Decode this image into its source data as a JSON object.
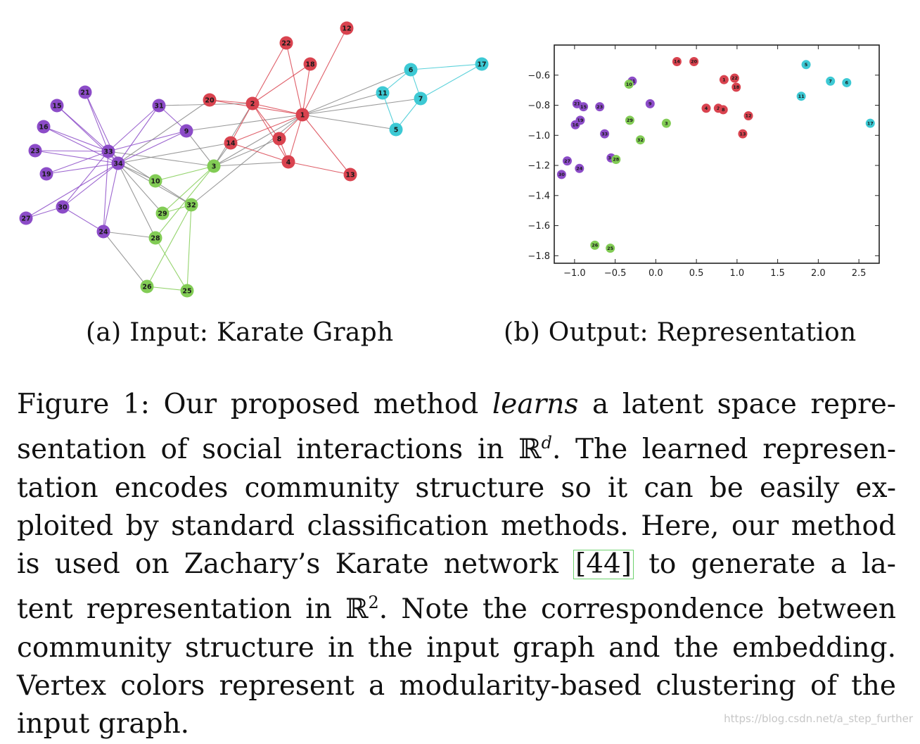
{
  "colors": {
    "purple": "#8c4cc8",
    "red": "#d9434f",
    "cyan": "#3dc9d4",
    "green": "#82cc55",
    "edge_gray": "#8a8a8a"
  },
  "graph": {
    "nodes": [
      {
        "id": "1",
        "group": "red"
      },
      {
        "id": "2",
        "group": "red"
      },
      {
        "id": "3",
        "group": "green"
      },
      {
        "id": "4",
        "group": "red"
      },
      {
        "id": "5",
        "group": "cyan"
      },
      {
        "id": "6",
        "group": "cyan"
      },
      {
        "id": "7",
        "group": "cyan"
      },
      {
        "id": "8",
        "group": "red"
      },
      {
        "id": "9",
        "group": "purple"
      },
      {
        "id": "10",
        "group": "green"
      },
      {
        "id": "11",
        "group": "cyan"
      },
      {
        "id": "12",
        "group": "red"
      },
      {
        "id": "13",
        "group": "red"
      },
      {
        "id": "14",
        "group": "red"
      },
      {
        "id": "15",
        "group": "purple"
      },
      {
        "id": "16",
        "group": "purple"
      },
      {
        "id": "17",
        "group": "cyan"
      },
      {
        "id": "18",
        "group": "red"
      },
      {
        "id": "19",
        "group": "purple"
      },
      {
        "id": "20",
        "group": "red"
      },
      {
        "id": "21",
        "group": "purple"
      },
      {
        "id": "22",
        "group": "red"
      },
      {
        "id": "23",
        "group": "purple"
      },
      {
        "id": "24",
        "group": "purple"
      },
      {
        "id": "25",
        "group": "green"
      },
      {
        "id": "26",
        "group": "green"
      },
      {
        "id": "27",
        "group": "purple"
      },
      {
        "id": "28",
        "group": "green"
      },
      {
        "id": "29",
        "group": "green"
      },
      {
        "id": "30",
        "group": "purple"
      },
      {
        "id": "31",
        "group": "purple"
      },
      {
        "id": "32",
        "group": "green"
      },
      {
        "id": "33",
        "group": "purple"
      },
      {
        "id": "34",
        "group": "purple"
      }
    ],
    "edges": [
      [
        "1",
        "2"
      ],
      [
        "1",
        "3"
      ],
      [
        "1",
        "4"
      ],
      [
        "1",
        "5"
      ],
      [
        "1",
        "6"
      ],
      [
        "1",
        "7"
      ],
      [
        "1",
        "8"
      ],
      [
        "1",
        "9"
      ],
      [
        "1",
        "11"
      ],
      [
        "1",
        "12"
      ],
      [
        "1",
        "13"
      ],
      [
        "1",
        "14"
      ],
      [
        "1",
        "18"
      ],
      [
        "1",
        "20"
      ],
      [
        "1",
        "22"
      ],
      [
        "1",
        "32"
      ],
      [
        "2",
        "3"
      ],
      [
        "2",
        "4"
      ],
      [
        "2",
        "8"
      ],
      [
        "2",
        "14"
      ],
      [
        "2",
        "18"
      ],
      [
        "2",
        "20"
      ],
      [
        "2",
        "22"
      ],
      [
        "2",
        "31"
      ],
      [
        "3",
        "4"
      ],
      [
        "3",
        "8"
      ],
      [
        "3",
        "9"
      ],
      [
        "3",
        "10"
      ],
      [
        "3",
        "14"
      ],
      [
        "3",
        "28"
      ],
      [
        "3",
        "29"
      ],
      [
        "3",
        "33"
      ],
      [
        "4",
        "8"
      ],
      [
        "4",
        "13"
      ],
      [
        "4",
        "14"
      ],
      [
        "5",
        "7"
      ],
      [
        "5",
        "11"
      ],
      [
        "6",
        "7"
      ],
      [
        "6",
        "11"
      ],
      [
        "6",
        "17"
      ],
      [
        "7",
        "17"
      ],
      [
        "9",
        "31"
      ],
      [
        "9",
        "33"
      ],
      [
        "9",
        "34"
      ],
      [
        "10",
        "34"
      ],
      [
        "14",
        "34"
      ],
      [
        "15",
        "33"
      ],
      [
        "15",
        "34"
      ],
      [
        "16",
        "33"
      ],
      [
        "16",
        "34"
      ],
      [
        "19",
        "33"
      ],
      [
        "19",
        "34"
      ],
      [
        "20",
        "34"
      ],
      [
        "21",
        "33"
      ],
      [
        "21",
        "34"
      ],
      [
        "23",
        "33"
      ],
      [
        "23",
        "34"
      ],
      [
        "24",
        "26"
      ],
      [
        "24",
        "28"
      ],
      [
        "24",
        "30"
      ],
      [
        "24",
        "33"
      ],
      [
        "24",
        "34"
      ],
      [
        "25",
        "26"
      ],
      [
        "25",
        "28"
      ],
      [
        "25",
        "32"
      ],
      [
        "26",
        "32"
      ],
      [
        "27",
        "30"
      ],
      [
        "27",
        "34"
      ],
      [
        "28",
        "34"
      ],
      [
        "29",
        "32"
      ],
      [
        "29",
        "34"
      ],
      [
        "30",
        "33"
      ],
      [
        "30",
        "34"
      ],
      [
        "31",
        "33"
      ],
      [
        "31",
        "34"
      ],
      [
        "32",
        "33"
      ],
      [
        "32",
        "34"
      ],
      [
        "33",
        "34"
      ]
    ]
  },
  "chart_data": {
    "type": "scatter",
    "xlim": [
      -1.25,
      2.75
    ],
    "ylim": [
      -1.85,
      -0.4
    ],
    "xticks": [
      -1.0,
      -0.5,
      0.0,
      0.5,
      1.0,
      1.5,
      2.0,
      2.5
    ],
    "yticks": [
      -0.6,
      -0.8,
      -1.0,
      -1.2,
      -1.4,
      -1.6,
      -1.8
    ],
    "xtick_labels": [
      "−1.0",
      "−0.5",
      "0.0",
      "0.5",
      "1.0",
      "1.5",
      "2.0",
      "2.5"
    ],
    "ytick_labels": [
      "−0.6",
      "−0.8",
      "−1.0",
      "−1.2",
      "−1.4",
      "−1.6",
      "−1.8"
    ],
    "points": [
      {
        "label": "14",
        "x": 0.26,
        "y": -0.51,
        "group": "red"
      },
      {
        "label": "20",
        "x": 0.47,
        "y": -0.51,
        "group": "red"
      },
      {
        "label": "1",
        "x": 0.84,
        "y": -0.63,
        "group": "red"
      },
      {
        "label": "22",
        "x": 0.97,
        "y": -0.62,
        "group": "red"
      },
      {
        "label": "18",
        "x": 0.99,
        "y": -0.68,
        "group": "red"
      },
      {
        "label": "4",
        "x": 0.62,
        "y": -0.82,
        "group": "red"
      },
      {
        "label": "2",
        "x": 0.77,
        "y": -0.82,
        "group": "red"
      },
      {
        "label": "8",
        "x": 0.83,
        "y": -0.83,
        "group": "red"
      },
      {
        "label": "12",
        "x": 1.14,
        "y": -0.87,
        "group": "red"
      },
      {
        "label": "13",
        "x": 1.07,
        "y": -0.99,
        "group": "red"
      },
      {
        "label": "5",
        "x": 1.85,
        "y": -0.53,
        "group": "cyan"
      },
      {
        "label": "7",
        "x": 2.15,
        "y": -0.64,
        "group": "cyan"
      },
      {
        "label": "6",
        "x": 2.35,
        "y": -0.65,
        "group": "cyan"
      },
      {
        "label": "11",
        "x": 1.79,
        "y": -0.74,
        "group": "cyan"
      },
      {
        "label": "17",
        "x": 2.64,
        "y": -0.92,
        "group": "cyan"
      },
      {
        "label": "31",
        "x": -0.29,
        "y": -0.64,
        "group": "purple"
      },
      {
        "label": "9",
        "x": -0.07,
        "y": -0.79,
        "group": "purple"
      },
      {
        "label": "21",
        "x": -0.97,
        "y": -0.79,
        "group": "purple"
      },
      {
        "label": "15",
        "x": -0.89,
        "y": -0.81,
        "group": "purple"
      },
      {
        "label": "23",
        "x": -0.69,
        "y": -0.81,
        "group": "purple"
      },
      {
        "label": "19",
        "x": -0.93,
        "y": -0.9,
        "group": "purple"
      },
      {
        "label": "16",
        "x": -0.99,
        "y": -0.93,
        "group": "purple"
      },
      {
        "label": "33",
        "x": -0.63,
        "y": -0.99,
        "group": "purple"
      },
      {
        "label": "34",
        "x": -0.55,
        "y": -1.15,
        "group": "purple"
      },
      {
        "label": "27",
        "x": -1.09,
        "y": -1.17,
        "group": "purple"
      },
      {
        "label": "24",
        "x": -0.94,
        "y": -1.22,
        "group": "purple"
      },
      {
        "label": "30",
        "x": -1.16,
        "y": -1.26,
        "group": "purple"
      },
      {
        "label": "10",
        "x": -0.33,
        "y": -0.66,
        "group": "green"
      },
      {
        "label": "29",
        "x": -0.32,
        "y": -0.9,
        "group": "green"
      },
      {
        "label": "3",
        "x": 0.13,
        "y": -0.92,
        "group": "green"
      },
      {
        "label": "32",
        "x": -0.19,
        "y": -1.03,
        "group": "green"
      },
      {
        "label": "28",
        "x": -0.49,
        "y": -1.16,
        "group": "green"
      },
      {
        "label": "26",
        "x": -0.75,
        "y": -1.73,
        "group": "green"
      },
      {
        "label": "25",
        "x": -0.56,
        "y": -1.75,
        "group": "green"
      }
    ]
  },
  "captions": {
    "sub_a": "(a) Input:  Karate Graph",
    "sub_b": "(b) Output:  Representation"
  },
  "caption": {
    "line1_a": "Figure 1: Our proposed method ",
    "line1_em": "learns",
    "line1_b": " a latent space repre-",
    "line2_a": "sentation of social interactions in ℝ",
    "line2_sup": "d",
    "line2_b": ". The learned represen-",
    "line3": "tation encodes community structure so it can be easily ex-",
    "line4": "ploited by standard classification methods. Here, our method",
    "line5_a": "is used on Zachary’s Karate network ",
    "line5_ref": "[44]",
    "line5_b": " to generate a la-",
    "line6_a": "tent representation in ℝ",
    "line6_sup": "2",
    "line6_b": ". Note the correspondence between",
    "line7": "community structure in the input graph and the embedding.",
    "line8": "Vertex colors represent a modularity-based clustering of the",
    "line9": "input graph."
  },
  "watermark": "https://blog.csdn.net/a_step_further"
}
